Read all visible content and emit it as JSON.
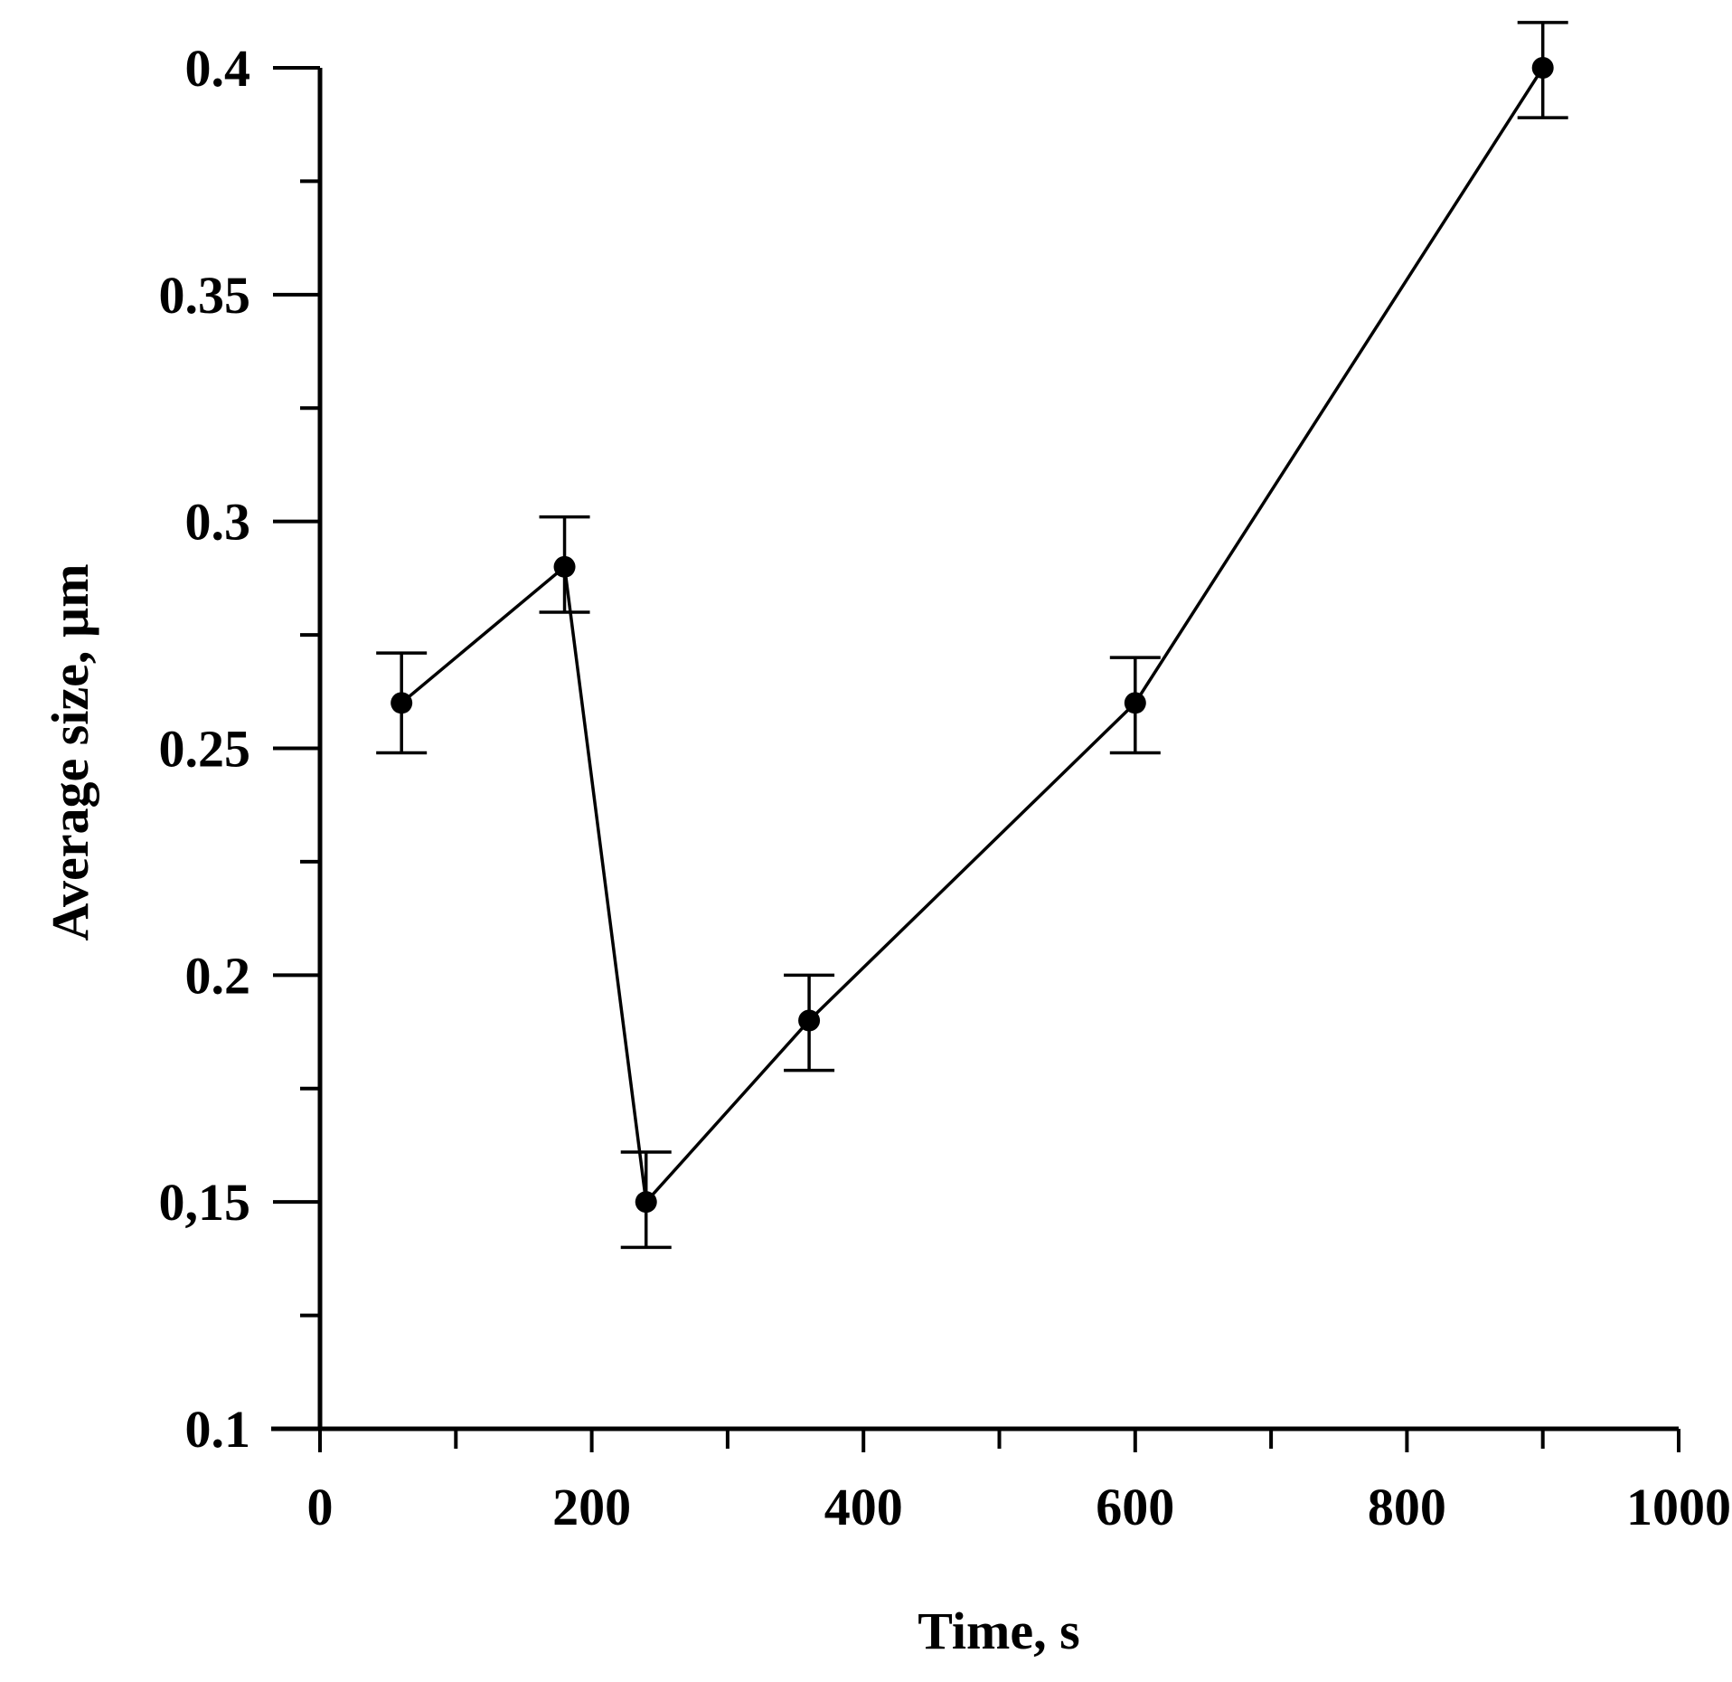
{
  "chart_data": {
    "type": "line",
    "xlabel": "Time, s",
    "ylabel": "Average size, µm",
    "xlim": [
      0,
      1000
    ],
    "ylim": [
      0.1,
      0.4
    ],
    "x_ticks": [
      {
        "value": 0,
        "label": "0"
      },
      {
        "value": 200,
        "label": "200"
      },
      {
        "value": 400,
        "label": "400"
      },
      {
        "value": 600,
        "label": "600"
      },
      {
        "value": 800,
        "label": "800"
      },
      {
        "value": 1000,
        "label": "1000"
      }
    ],
    "x_minor_ticks": [
      100,
      300,
      500,
      700,
      900
    ],
    "y_ticks": [
      {
        "value": 0.1,
        "label": "0.1"
      },
      {
        "value": 0.15,
        "label": "0,15"
      },
      {
        "value": 0.2,
        "label": "0.2"
      },
      {
        "value": 0.25,
        "label": "0.25"
      },
      {
        "value": 0.3,
        "label": "0.3"
      },
      {
        "value": 0.35,
        "label": "0.35"
      },
      {
        "value": 0.4,
        "label": "0.4"
      }
    ],
    "y_minor_ticks": [
      0.125,
      0.175,
      0.225,
      0.275,
      0.325,
      0.375
    ],
    "grid": false,
    "series": [
      {
        "x": [
          60,
          180,
          240,
          360,
          600,
          900
        ],
        "y": [
          0.26,
          0.29,
          0.15,
          0.19,
          0.26,
          0.4
        ],
        "err_low": [
          0.249,
          0.28,
          0.14,
          0.179,
          0.249,
          0.389
        ],
        "err_high": [
          0.271,
          0.301,
          0.161,
          0.2,
          0.27,
          0.41
        ],
        "color": "#000000",
        "marker": "circle"
      }
    ]
  }
}
